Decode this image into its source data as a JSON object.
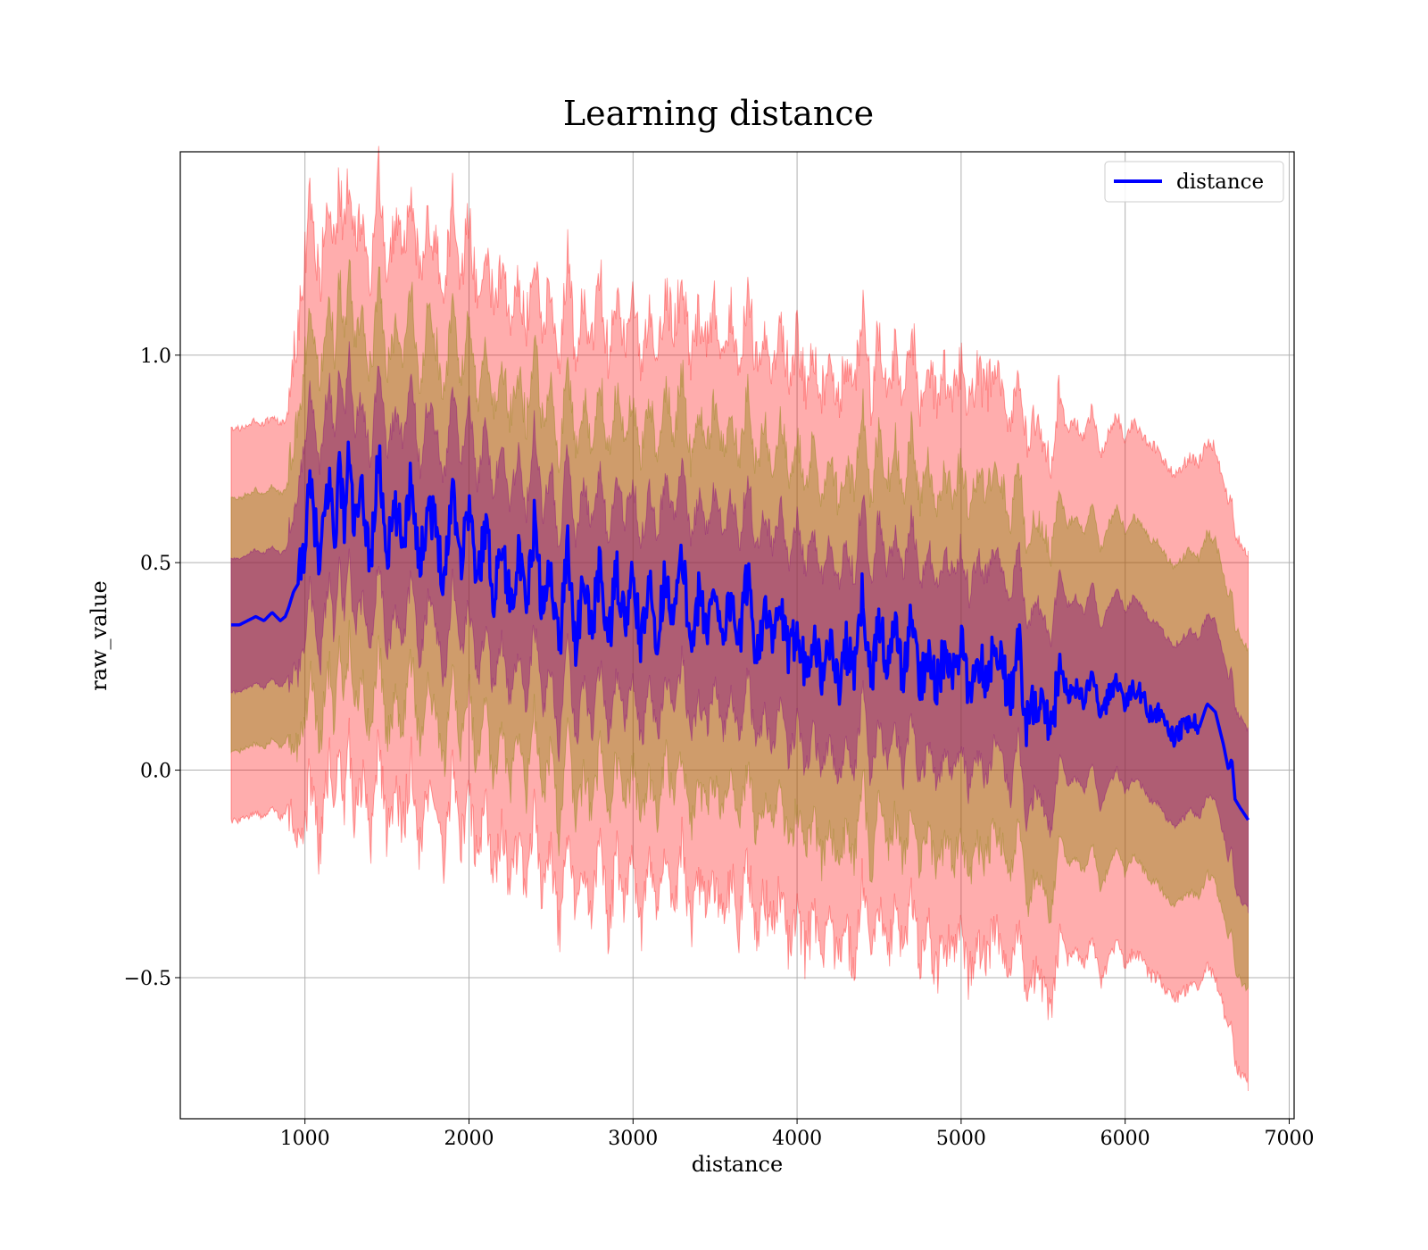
{
  "chart_data": {
    "type": "line",
    "title": "Learning distance",
    "xlabel": "distance",
    "ylabel": "raw_value",
    "xlim": [
      240,
      7030
    ],
    "ylim": [
      -0.84,
      1.49
    ],
    "xticks": [
      1000,
      2000,
      3000,
      4000,
      5000,
      6000,
      7000
    ],
    "xtick_labels": [
      "1000",
      "2000",
      "3000",
      "4000",
      "5000",
      "6000",
      "7000"
    ],
    "yticks": [
      -0.5,
      0.0,
      0.5,
      1.0
    ],
    "ytick_labels": [
      "−0.5",
      "0.0",
      "0.5",
      "1.0"
    ],
    "grid": true,
    "legend": {
      "placement": "top-right",
      "entries": [
        {
          "label": "distance",
          "color": "#0000ff"
        }
      ]
    },
    "colors": {
      "line": "#0000ff",
      "outer_band": "#ff0000",
      "middle_band": "#808000",
      "inner_band": "#800080"
    },
    "band_half_widths": {
      "inner": 0.21,
      "middle": 0.4,
      "outer": 0.62
    },
    "series": [
      {
        "name": "distance",
        "x": [
          550,
          600,
          650,
          700,
          750,
          800,
          850,
          880,
          900,
          930,
          960,
          1000,
          1030,
          1060,
          1090,
          1120,
          1150,
          1180,
          1210,
          1240,
          1270,
          1300,
          1350,
          1400,
          1450,
          1500,
          1550,
          1600,
          1650,
          1700,
          1750,
          1800,
          1850,
          1900,
          1950,
          2000,
          2050,
          2100,
          2150,
          2200,
          2250,
          2300,
          2350,
          2400,
          2450,
          2500,
          2550,
          2600,
          2650,
          2700,
          2750,
          2800,
          2850,
          2900,
          2950,
          3000,
          3050,
          3100,
          3150,
          3200,
          3250,
          3300,
          3350,
          3400,
          3450,
          3500,
          3550,
          3600,
          3650,
          3700,
          3750,
          3800,
          3850,
          3900,
          3950,
          4000,
          4050,
          4100,
          4150,
          4200,
          4250,
          4300,
          4350,
          4400,
          4450,
          4500,
          4550,
          4600,
          4650,
          4700,
          4750,
          4800,
          4850,
          4900,
          4950,
          5000,
          5050,
          5100,
          5150,
          5200,
          5250,
          5300,
          5350,
          5400,
          5450,
          5500,
          5550,
          5600,
          5650,
          5700,
          5750,
          5800,
          5850,
          5900,
          5950,
          6000,
          6050,
          6100,
          6150,
          6200,
          6250,
          6300,
          6350,
          6400,
          6450,
          6500,
          6550,
          6600,
          6630,
          6650,
          6670,
          6700,
          6750
        ],
        "values": [
          0.35,
          0.35,
          0.36,
          0.37,
          0.36,
          0.38,
          0.36,
          0.37,
          0.39,
          0.43,
          0.45,
          0.55,
          0.68,
          0.6,
          0.47,
          0.62,
          0.7,
          0.55,
          0.74,
          0.6,
          0.77,
          0.58,
          0.66,
          0.5,
          0.76,
          0.52,
          0.62,
          0.55,
          0.72,
          0.48,
          0.65,
          0.58,
          0.45,
          0.7,
          0.5,
          0.65,
          0.44,
          0.6,
          0.42,
          0.55,
          0.4,
          0.52,
          0.38,
          0.6,
          0.37,
          0.5,
          0.28,
          0.56,
          0.3,
          0.45,
          0.34,
          0.5,
          0.3,
          0.48,
          0.35,
          0.46,
          0.3,
          0.44,
          0.32,
          0.48,
          0.36,
          0.52,
          0.3,
          0.42,
          0.34,
          0.44,
          0.33,
          0.42,
          0.3,
          0.48,
          0.28,
          0.38,
          0.3,
          0.4,
          0.26,
          0.36,
          0.24,
          0.34,
          0.22,
          0.32,
          0.2,
          0.3,
          0.22,
          0.44,
          0.2,
          0.38,
          0.24,
          0.34,
          0.22,
          0.38,
          0.2,
          0.3,
          0.2,
          0.28,
          0.22,
          0.3,
          0.18,
          0.28,
          0.22,
          0.3,
          0.26,
          0.16,
          0.32,
          0.1,
          0.18,
          0.14,
          0.08,
          0.26,
          0.18,
          0.2,
          0.16,
          0.24,
          0.12,
          0.18,
          0.22,
          0.16,
          0.2,
          0.18,
          0.14,
          0.14,
          0.1,
          0.08,
          0.1,
          0.12,
          0.1,
          0.16,
          0.14,
          0.06,
          0.0,
          0.03,
          -0.07,
          -0.09,
          -0.12
        ]
      }
    ]
  }
}
